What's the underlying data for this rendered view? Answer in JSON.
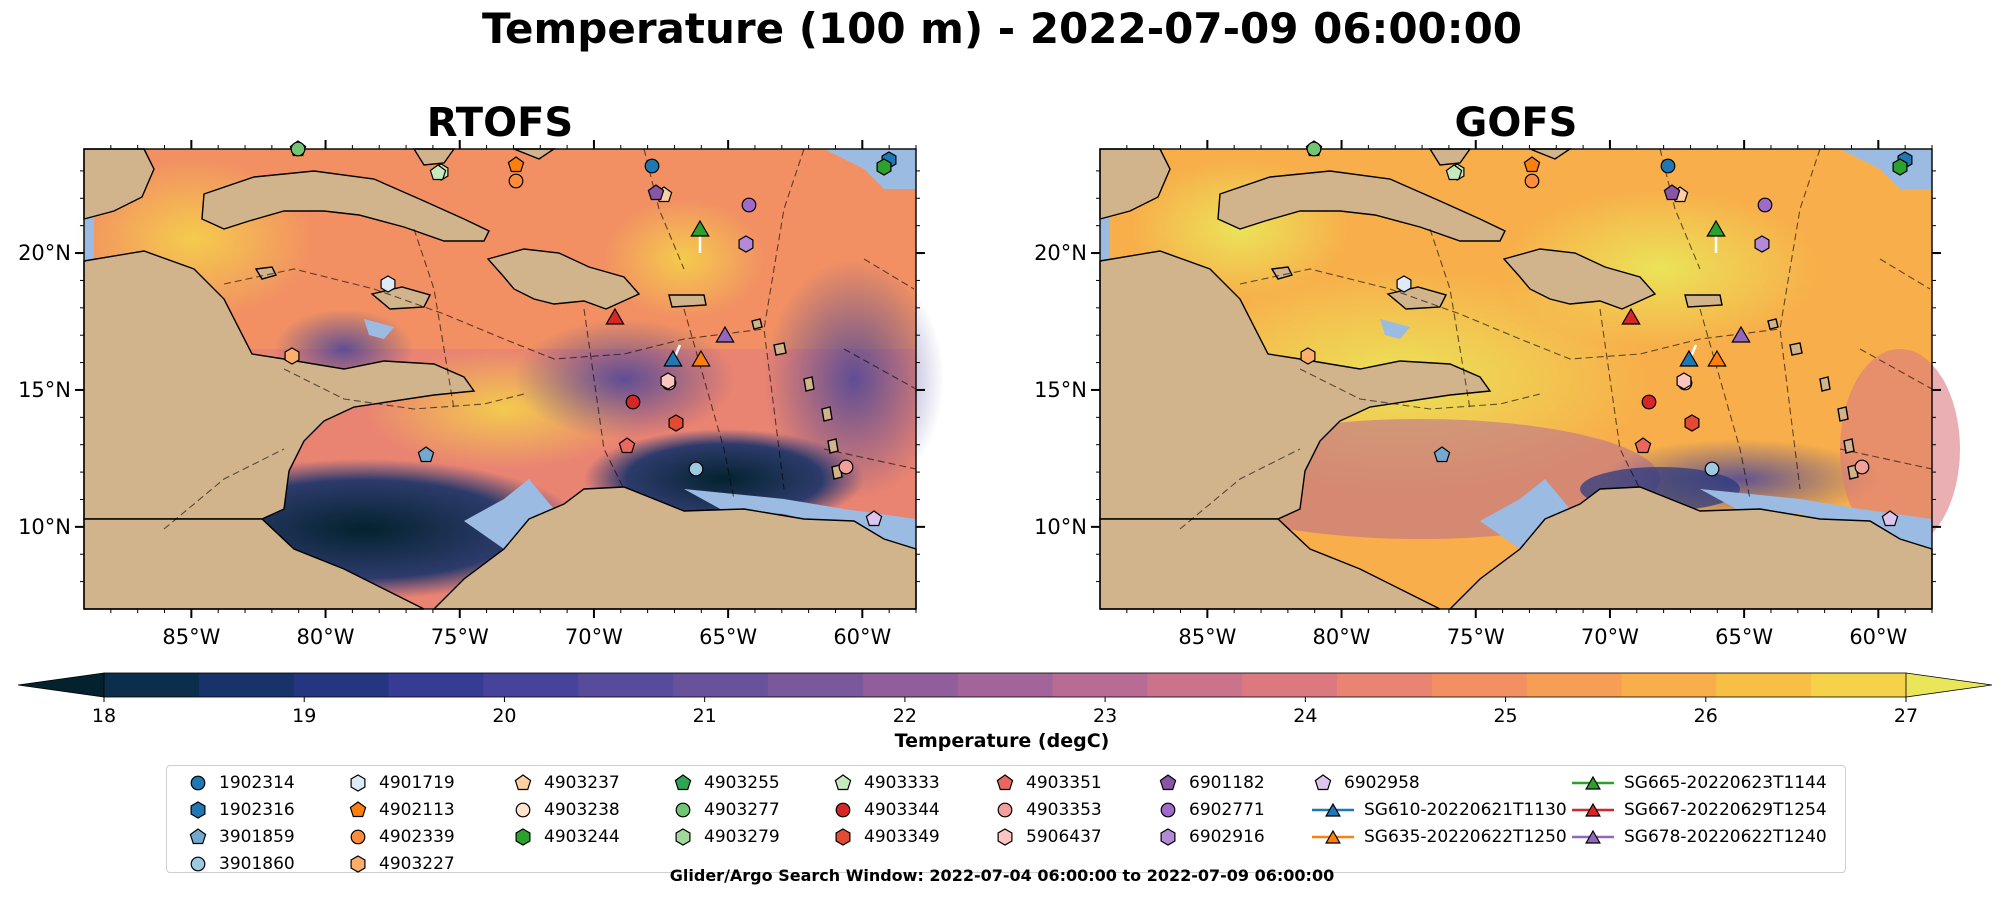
{
  "title": "Temperature (100 m) - 2022-07-09 06:00:00",
  "panels": [
    {
      "title": "RTOFS"
    },
    {
      "title": "GOFS"
    }
  ],
  "axes": {
    "lon_ticks": [
      "85°W",
      "80°W",
      "75°W",
      "70°W",
      "65°W",
      "60°W"
    ],
    "lat_ticks": [
      "20°N",
      "15°N",
      "10°N"
    ],
    "lon_range": [
      -89,
      -58
    ],
    "lat_range": [
      7,
      23.8
    ]
  },
  "colorbar": {
    "label": "Temperature (degC)",
    "ticks": [
      "18",
      "19",
      "20",
      "21",
      "22",
      "23",
      "24",
      "25",
      "26",
      "27"
    ],
    "min": 18,
    "max": 27,
    "extend": "both",
    "colors": [
      "#03222e",
      "#0b2e4d",
      "#18336a",
      "#243680",
      "#363b93",
      "#46449a",
      "#574b9c",
      "#68529c",
      "#7b589c",
      "#8f5e9b",
      "#a3649a",
      "#b86b95",
      "#cb728c",
      "#dc7980",
      "#e98372",
      "#f29063",
      "#f69e55",
      "#f8ae4a",
      "#f8bf45",
      "#f5d24a",
      "#eae659"
    ]
  },
  "legend": {
    "columns": [
      [
        {
          "label": "1902314",
          "marker": "circle",
          "color": "#1f77b4"
        },
        {
          "label": "1902316",
          "marker": "hexagon",
          "color": "#1f77b4"
        },
        {
          "label": "3901859",
          "marker": "pentagon",
          "color": "#74a9cf"
        },
        {
          "label": "3901860",
          "marker": "circle",
          "color": "#9ecae1"
        }
      ],
      [
        {
          "label": "4901719",
          "marker": "hexagon",
          "color": "#deebf7"
        },
        {
          "label": "4902113",
          "marker": "pentagon",
          "color": "#ff7f0e"
        },
        {
          "label": "4902339",
          "marker": "circle",
          "color": "#fd8d3c"
        },
        {
          "label": "4903227",
          "marker": "hexagon",
          "color": "#fdae6b"
        }
      ],
      [
        {
          "label": "4903237",
          "marker": "pentagon",
          "color": "#fdd0a2"
        },
        {
          "label": "4903238",
          "marker": "circle",
          "color": "#fee6ce"
        },
        {
          "label": "4903244",
          "marker": "hexagon",
          "color": "#2ca02c"
        }
      ],
      [
        {
          "label": "4903255",
          "marker": "pentagon",
          "color": "#31a354"
        },
        {
          "label": "4903277",
          "marker": "circle",
          "color": "#74c476"
        },
        {
          "label": "4903279",
          "marker": "hexagon",
          "color": "#a1d99b"
        }
      ],
      [
        {
          "label": "4903333",
          "marker": "pentagon",
          "color": "#c7e9c0"
        },
        {
          "label": "4903344",
          "marker": "circle",
          "color": "#d62728"
        },
        {
          "label": "4903349",
          "marker": "hexagon",
          "color": "#e34a33"
        }
      ],
      [
        {
          "label": "4903351",
          "marker": "pentagon",
          "color": "#e9675f"
        },
        {
          "label": "4903353",
          "marker": "circle",
          "color": "#f4a09a"
        },
        {
          "label": "5906437",
          "marker": "hexagon",
          "color": "#fcc5c0"
        }
      ],
      [
        {
          "label": "6901182",
          "marker": "pentagon",
          "color": "#8856a7"
        },
        {
          "label": "6902771",
          "marker": "circle",
          "color": "#9e6cc8"
        },
        {
          "label": "6902916",
          "marker": "hexagon",
          "color": "#b38ad8"
        }
      ],
      [
        {
          "label": "6902958",
          "marker": "pentagon",
          "color": "#dcc6f0"
        },
        {
          "label": "SG610-20220621T1130",
          "marker": "triangle",
          "color": "#1f77b4",
          "line": true
        },
        {
          "label": "SG635-20220622T1250",
          "marker": "triangle",
          "color": "#ff7f0e",
          "line": true
        }
      ],
      [
        {
          "label": "SG665-20220623T1144",
          "marker": "triangle",
          "color": "#2ca02c",
          "line": true
        },
        {
          "label": "SG667-20220629T1254",
          "marker": "triangle",
          "color": "#d62728",
          "line": true
        },
        {
          "label": "SG678-20220622T1240",
          "marker": "triangle",
          "color": "#9467bd",
          "line": true
        }
      ]
    ]
  },
  "footer": "Glider/Argo Search Window: 2022-07-04 06:00:00 to 2022-07-09 06:00:00",
  "colors": {
    "land": "#d2b48c",
    "water": "#9bbbe3",
    "deep": "#03222e"
  }
}
